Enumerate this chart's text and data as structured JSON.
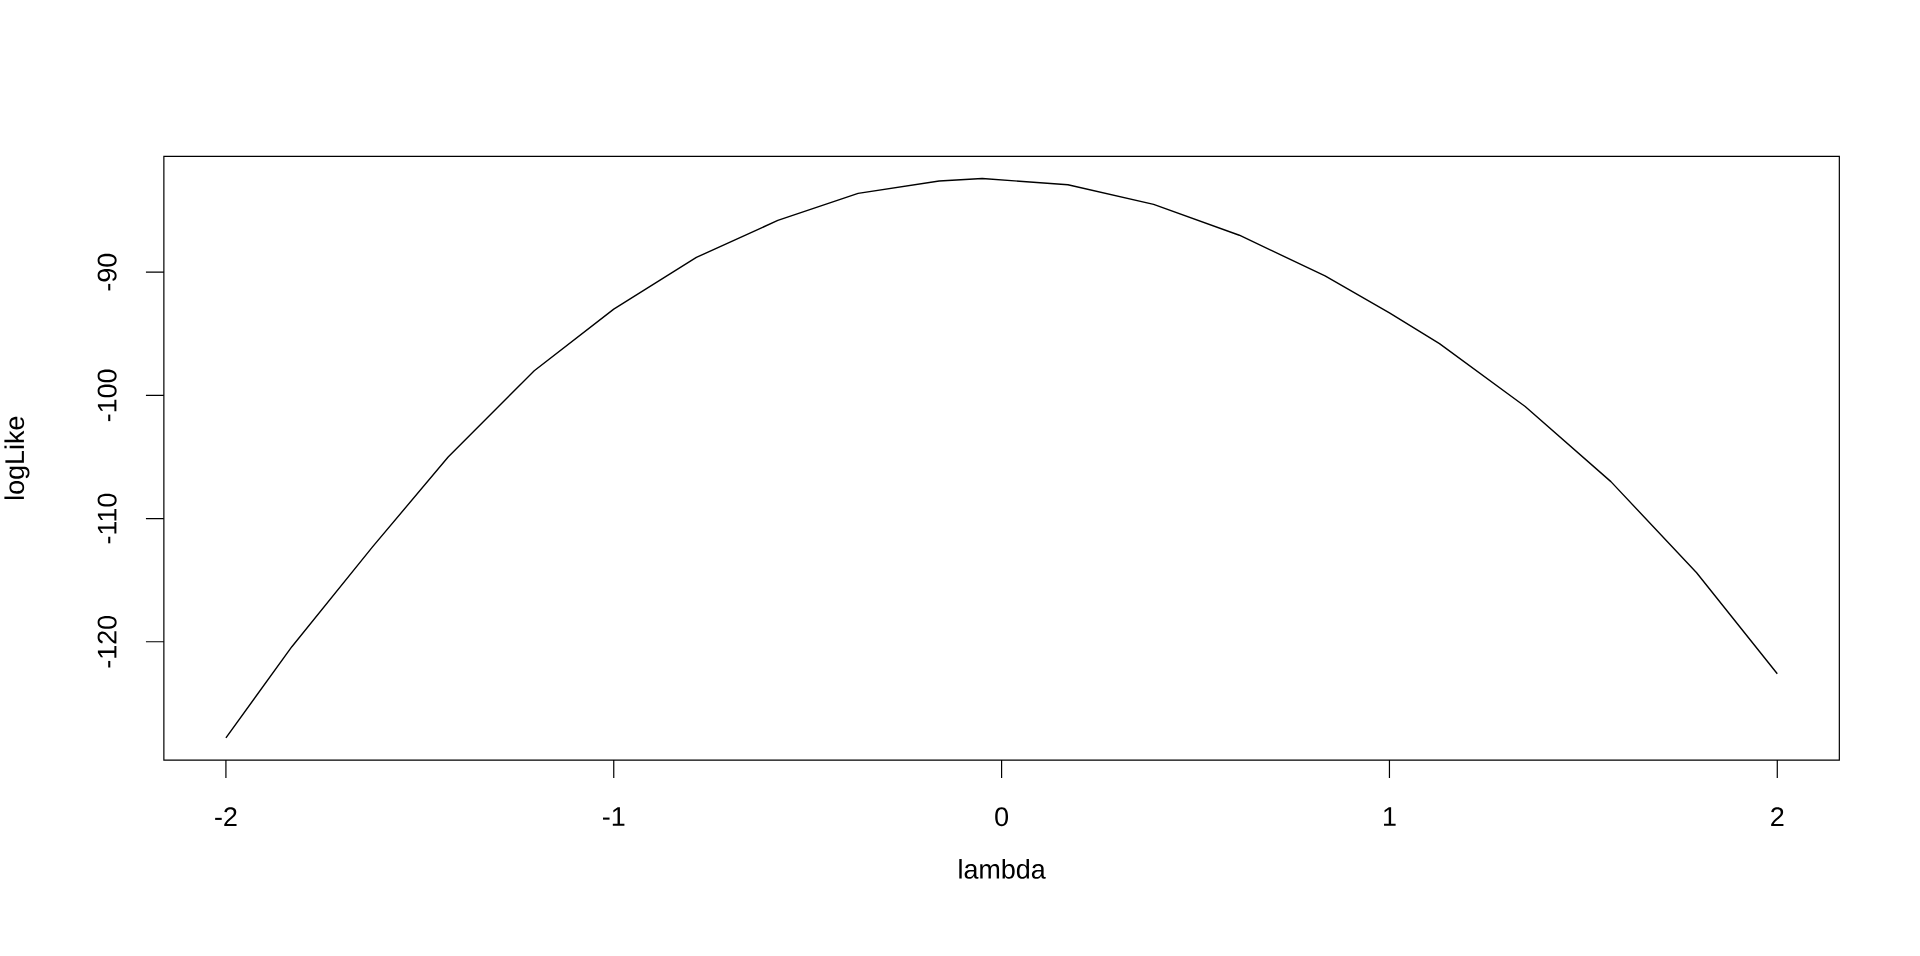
{
  "chart_data": {
    "type": "line",
    "xlabel": "lambda",
    "ylabel": "logLike",
    "x": [
      -2,
      -1.83,
      -1.622,
      -1.427,
      -1.205,
      -1,
      -0.787,
      -0.577,
      -0.37,
      -0.161,
      -0.05,
      0.171,
      0.392,
      0.613,
      0.834,
      1.0,
      1.129,
      1.35,
      1.571,
      1.792,
      2.0
    ],
    "values": [
      -127.8,
      -120.4,
      -112.3,
      -105.0,
      -98.0,
      -93.0,
      -88.8,
      -85.8,
      -83.6,
      -82.6,
      -82.4,
      -82.9,
      -84.5,
      -87.0,
      -90.3,
      -93.3,
      -95.8,
      -100.9,
      -107.0,
      -114.4,
      -122.6
    ],
    "color": "#000000",
    "marker": "none",
    "line_style": "solid",
    "grid": false,
    "xlim": [
      -2.16,
      2.16
    ],
    "ylim": [
      -129.6,
      -80.6
    ],
    "xticks": [
      -2,
      -1,
      0,
      1,
      2
    ],
    "yticks": [
      -120,
      -110,
      -100,
      -90
    ]
  }
}
